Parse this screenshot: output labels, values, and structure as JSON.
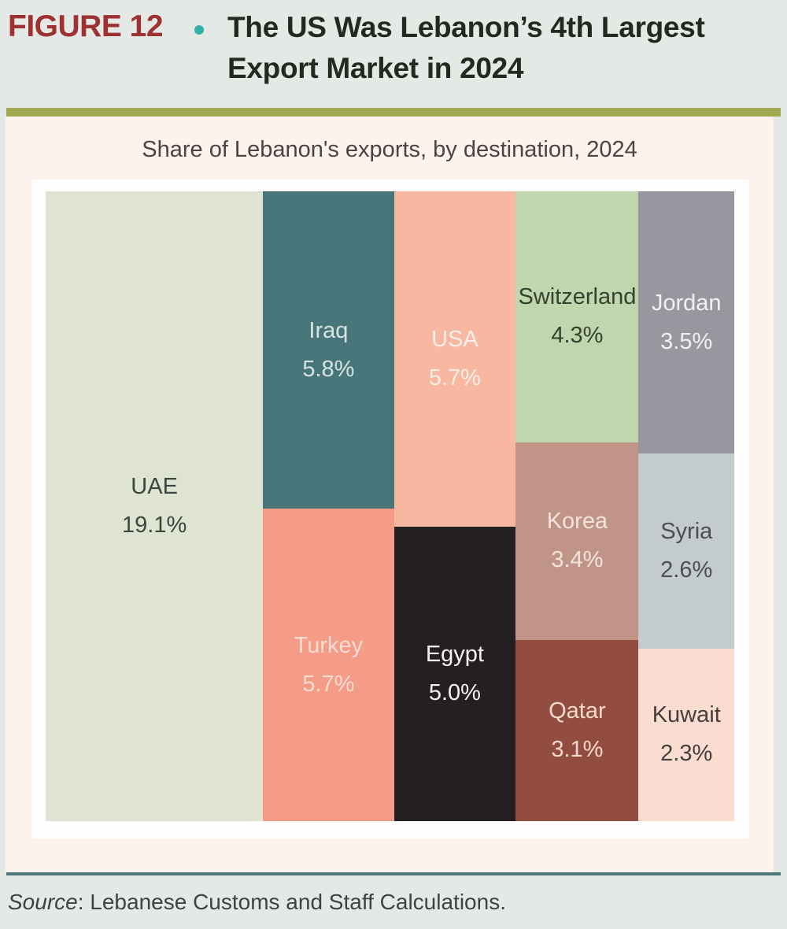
{
  "figure": {
    "label": "FIGURE 12",
    "title": "The US Was Lebanon’s 4th Largest Export Market in 2024"
  },
  "chart_data": {
    "type": "treemap",
    "title": "Share of Lebanon's exports, by destination, 2024",
    "unit": "%",
    "items": [
      {
        "name": "UAE",
        "value": 19.1,
        "color": "#dee4d1",
        "text_color": "#3c443e"
      },
      {
        "name": "Iraq",
        "value": 5.8,
        "color": "#477579",
        "text_color": "#d5e3e1"
      },
      {
        "name": "Turkey",
        "value": 5.7,
        "color": "#f49c87",
        "text_color": "#fbdcd2"
      },
      {
        "name": "USA",
        "value": 5.7,
        "color": "#f8b7a1",
        "text_color": "#fdeee7"
      },
      {
        "name": "Egypt",
        "value": 5.0,
        "color": "#241f20",
        "text_color": "#f5f3f2"
      },
      {
        "name": "Switzerland",
        "value": 4.3,
        "color": "#c0d6ae",
        "text_color": "#36422f"
      },
      {
        "name": "Korea",
        "value": 3.4,
        "color": "#c09486",
        "text_color": "#f4e3dc"
      },
      {
        "name": "Qatar",
        "value": 3.1,
        "color": "#934c40",
        "text_color": "#f7d9ce"
      },
      {
        "name": "Jordan",
        "value": 3.5,
        "color": "#97979f",
        "text_color": "#f0f1f3"
      },
      {
        "name": "Syria",
        "value": 2.6,
        "color": "#c3cbce",
        "text_color": "#494f52"
      },
      {
        "name": "Kuwait",
        "value": 2.3,
        "color": "#fbdcd0",
        "text_color": "#453f3d"
      }
    ],
    "columns": [
      [
        "UAE"
      ],
      [
        "Iraq",
        "Turkey"
      ],
      [
        "USA",
        "Egypt"
      ],
      [
        "Switzerland",
        "Korea",
        "Qatar"
      ],
      [
        "Jordan",
        "Syria",
        "Kuwait"
      ]
    ],
    "legend": "none",
    "value_format": "{value}%"
  },
  "source": {
    "prefix": "Source",
    "text": ": Lebanese Customs and Staff Calculations."
  },
  "theme": {
    "page_bg": "#e5e9e6",
    "figure_label_color": "#9e3132",
    "bullet_color": "#2fb0ab",
    "title_color": "#232820",
    "olive_rule_color": "#9fa94f",
    "panel_bg": "#fdf2ec",
    "chart_title_color": "#4b4442",
    "inner_panel_bg": "#fffefe",
    "teal_rule_color": "#4e767c",
    "source_color": "#3e4245"
  }
}
